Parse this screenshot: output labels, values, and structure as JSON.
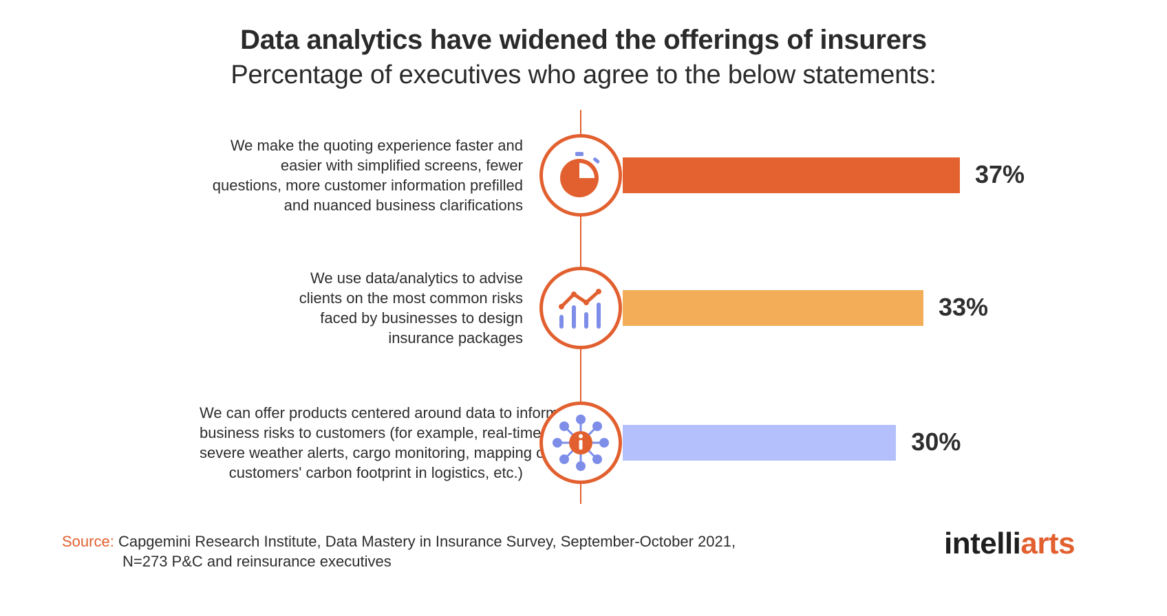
{
  "chart_data": {
    "type": "bar",
    "orientation": "horizontal",
    "title": "Data analytics have widened the offerings of insurers",
    "subtitle": "Percentage of executives who agree to the below statements:",
    "xlim": [
      0,
      40
    ],
    "unit": "%",
    "categories": [
      {
        "label_lines": [
          "We make the quoting experience faster and",
          "easier with simplified screens, fewer",
          "questions, more customer information prefilled",
          "and nuanced business clarifications"
        ],
        "value": 37,
        "value_label": "37%",
        "color": "#e3622f",
        "icon": "stopwatch-icon"
      },
      {
        "label_lines": [
          "We use data/analytics to advise",
          "clients on the most common risks",
          "faced by businesses to design",
          "insurance packages"
        ],
        "value": 33,
        "value_label": "33%",
        "color": "#f3ad58",
        "icon": "analytics-chart-icon"
      },
      {
        "label_lines": [
          "We can offer products centered around data to inform",
          "business risks to customers (for example, real-time",
          "severe weather alerts, cargo monitoring, mapping of",
          "customers' carbon footprint in logistics, etc.)"
        ],
        "value": 30,
        "value_label": "30%",
        "color": "#b3c0fb",
        "icon": "info-network-icon"
      }
    ]
  },
  "source": {
    "label": "Source:",
    "line1": "Capgemini Research Institute, Data Mastery in Insurance Survey, September-October 2021,",
    "line2": "N=273 P&C and reinsurance executives"
  },
  "logo": {
    "text_main": "intelli",
    "text_accent": "arts"
  },
  "colors": {
    "accent": "#e2602f",
    "icon_blue": "#7d8de8"
  }
}
